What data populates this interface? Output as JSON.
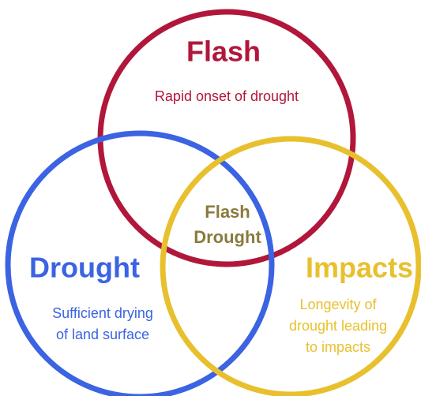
{
  "sets": [
    {
      "name": "Flash",
      "description": [
        "Rapid onset of drought"
      ]
    },
    {
      "name": "Drought",
      "description": [
        "Sufficient drying",
        "of land surface"
      ]
    },
    {
      "name": "Impacts",
      "description": [
        "Longevity of",
        "drought leading",
        "to impacts"
      ]
    }
  ],
  "intersection": [
    "Flash",
    "Drought"
  ]
}
